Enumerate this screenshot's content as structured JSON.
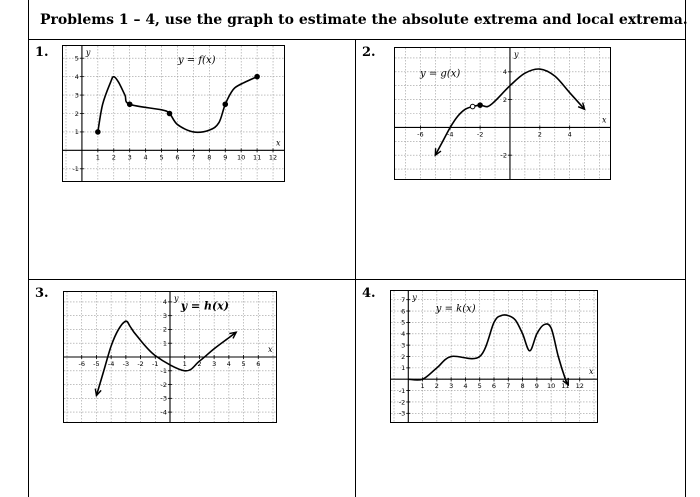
{
  "worksheet": {
    "title": "Problems 1 – 4, use the graph to estimate the absolute extrema and local extrema."
  },
  "problems": [
    {
      "number": "1.",
      "function_label": "y = f(x)"
    },
    {
      "number": "2.",
      "function_label": "y = g(x)"
    },
    {
      "number": "3.",
      "function_label": "y = h(x)"
    },
    {
      "number": "4.",
      "function_label": "y = k(x)"
    }
  ],
  "axis_labels": {
    "x": "x",
    "y": "y"
  },
  "chart_data": [
    {
      "type": "line",
      "title": "y = f(x)",
      "xlabel": "x",
      "ylabel": "y",
      "xlim": [
        -1,
        12.5
      ],
      "ylim": [
        -1.5,
        5.5
      ],
      "grid": true,
      "x_ticks": [
        "1",
        "2",
        "3",
        "4",
        "5",
        "6",
        "7",
        "8",
        "9",
        "10",
        "11",
        "12"
      ],
      "y_ticks": [
        "5",
        "4",
        "3",
        "2",
        "1",
        "-1"
      ],
      "curve": [
        [
          1,
          1
        ],
        [
          1.3,
          2.5
        ],
        [
          1.8,
          3.7
        ],
        [
          2,
          4
        ],
        [
          2.3,
          3.7
        ],
        [
          2.7,
          3
        ],
        [
          3,
          2.5
        ],
        [
          5,
          2.2
        ],
        [
          5.5,
          2
        ],
        [
          6,
          1.4
        ],
        [
          7,
          1
        ],
        [
          8,
          1.1
        ],
        [
          8.6,
          1.5
        ],
        [
          9,
          2.5
        ],
        [
          9.5,
          3.3
        ],
        [
          10,
          3.6
        ],
        [
          11,
          4
        ]
      ],
      "points": [
        {
          "x": 1,
          "y": 1,
          "closed": true
        },
        {
          "x": 3,
          "y": 2.5,
          "closed": true
        },
        {
          "x": 5.5,
          "y": 2,
          "closed": true
        },
        {
          "x": 9,
          "y": 2.5,
          "closed": true
        },
        {
          "x": 11,
          "y": 4,
          "closed": true
        }
      ]
    },
    {
      "type": "line",
      "title": "y = g(x)",
      "xlabel": "x",
      "ylabel": "y",
      "xlim": [
        -7.5,
        6.5
      ],
      "ylim": [
        -3.5,
        5.5
      ],
      "grid": true,
      "x_ticks": [
        "-6",
        "-4",
        "-2",
        "2",
        "4"
      ],
      "y_ticks": [
        "4",
        "2",
        "-2"
      ],
      "curve": [
        [
          -5,
          -2
        ],
        [
          -4.5,
          -1
        ],
        [
          -4,
          0
        ],
        [
          -3.5,
          0.8
        ],
        [
          -3,
          1.3
        ],
        [
          -2.5,
          1.5
        ],
        [
          -2,
          1.6
        ],
        [
          -1.5,
          1.5
        ],
        [
          -1,
          1.9
        ],
        [
          0,
          3
        ],
        [
          1,
          3.9
        ],
        [
          2,
          4.2
        ],
        [
          3,
          3.7
        ],
        [
          4,
          2.5
        ],
        [
          5,
          1.3
        ]
      ],
      "points": [
        {
          "x": -2.5,
          "y": 1.5,
          "closed": false
        },
        {
          "x": -2,
          "y": 1.6,
          "closed": true
        }
      ],
      "arrows": [
        "left-end",
        "right-end"
      ]
    },
    {
      "type": "line",
      "title": "y = h(x)",
      "xlabel": "x",
      "ylabel": "y",
      "xlim": [
        -7,
        7
      ],
      "ylim": [
        -4.5,
        4.5
      ],
      "grid": true,
      "x_ticks": [
        "-6",
        "-5",
        "-4",
        "-3",
        "-2",
        "-1",
        "1",
        "2",
        "3",
        "4",
        "5",
        "6"
      ],
      "y_ticks": [
        "4",
        "3",
        "2",
        "1",
        "-1",
        "-2",
        "-3",
        "-4"
      ],
      "curve": [
        [
          -5,
          -2.8
        ],
        [
          -4.5,
          -1
        ],
        [
          -4,
          0.8
        ],
        [
          -3.5,
          2
        ],
        [
          -3,
          2.6
        ],
        [
          -2.7,
          2.2
        ],
        [
          -2.3,
          1.6
        ],
        [
          -1,
          0.1
        ],
        [
          1,
          -1
        ],
        [
          2,
          -0.3
        ],
        [
          3,
          0.6
        ],
        [
          4,
          1.4
        ],
        [
          4.5,
          1.8
        ]
      ],
      "arrows": [
        "left-end",
        "right-end"
      ]
    },
    {
      "type": "line",
      "title": "y = k(x)",
      "xlabel": "x",
      "ylabel": "y",
      "xlim": [
        -1,
        13
      ],
      "ylim": [
        -3.5,
        7.5
      ],
      "grid": true,
      "x_ticks": [
        "1",
        "2",
        "3",
        "4",
        "5",
        "6",
        "7",
        "8",
        "9",
        "10",
        "11",
        "12"
      ],
      "y_ticks": [
        "7",
        "6",
        "5",
        "4",
        "3",
        "2",
        "1",
        "-1",
        "-2",
        "-3"
      ],
      "curve": [
        [
          0,
          0
        ],
        [
          1,
          0
        ],
        [
          2,
          1
        ],
        [
          3,
          2
        ],
        [
          5,
          2
        ],
        [
          6,
          5
        ],
        [
          6.5,
          5.6
        ],
        [
          7,
          5.6
        ],
        [
          7.5,
          5.2
        ],
        [
          8,
          4
        ],
        [
          8.5,
          2.5
        ],
        [
          9,
          4
        ],
        [
          9.5,
          4.8
        ],
        [
          10,
          4.5
        ],
        [
          10.5,
          2
        ],
        [
          11,
          0
        ],
        [
          11.2,
          -0.5
        ]
      ],
      "points": [],
      "arrows": [
        "right-end"
      ]
    }
  ]
}
